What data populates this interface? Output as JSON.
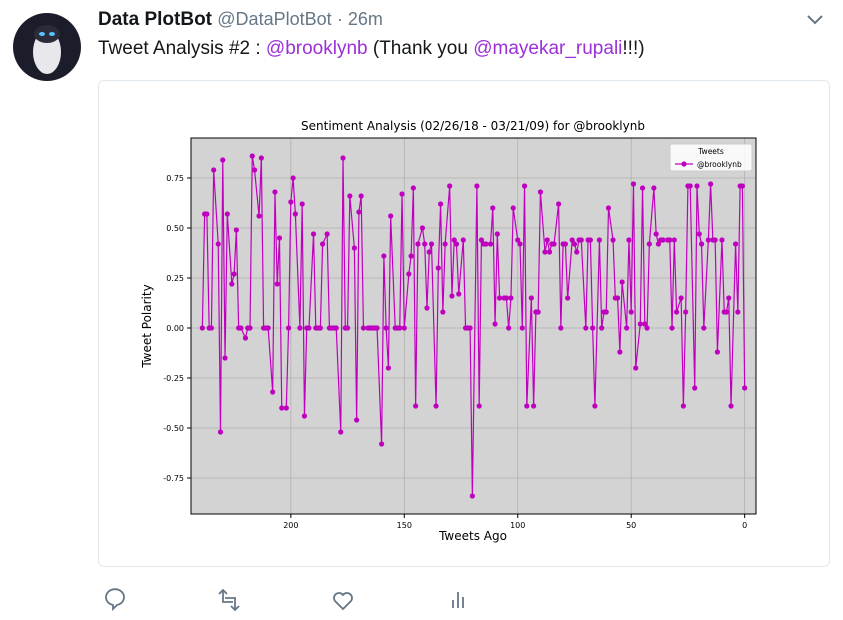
{
  "tweet": {
    "author_name": "Data PlotBot",
    "handle": "@DataPlotBot",
    "time": "· 26m",
    "text": [
      "Tweet Analysis #2 : ",
      "@brooklynb",
      " (Thank you ",
      "@mayekar_rupali",
      "!!!)"
    ]
  },
  "chart_data": {
    "type": "line",
    "title": "Sentiment Analysis (02/26/18 - 03/21/09) for @brooklynb",
    "xlabel": "Tweets Ago",
    "ylabel": "Tweet Polarity",
    "legend_title": "Tweets",
    "legend": "upper right",
    "grid": true,
    "background": "#d3d3d3",
    "xlim": [
      244,
      -5
    ],
    "ylim": [
      -0.93,
      0.95
    ],
    "xticks": [
      200,
      150,
      100,
      50,
      0
    ],
    "yticks": [
      0.75,
      {
        "value": 0.5,
        "label": "0.50"
      },
      0.25,
      {
        "value": 0,
        "label": "0.00"
      },
      -0.25,
      {
        "value": -0.5,
        "label": "-0.50"
      },
      -0.75
    ],
    "x": [
      239,
      238,
      237,
      236,
      235,
      234,
      232,
      231,
      230,
      229,
      228,
      226,
      225,
      224,
      223,
      222,
      220,
      219,
      218,
      217,
      216,
      214,
      213,
      212,
      211,
      210,
      208,
      207,
      206,
      205,
      204,
      202,
      201,
      200,
      199,
      198,
      196,
      195,
      194,
      193,
      192,
      190,
      189,
      188,
      187,
      186,
      184,
      183,
      182,
      181,
      180,
      178,
      177,
      176,
      175,
      174,
      172,
      171,
      170,
      169,
      168,
      166,
      165,
      164,
      163,
      162,
      160,
      159,
      158,
      157,
      156,
      154,
      153,
      152,
      151,
      150,
      148,
      147,
      146,
      145,
      144,
      142,
      141,
      140,
      139,
      138,
      136,
      135,
      134,
      133,
      132,
      130,
      129,
      128,
      127,
      126,
      124,
      123,
      122,
      121,
      120,
      118,
      117,
      116,
      115,
      114,
      112,
      111,
      110,
      109,
      108,
      106,
      105,
      104,
      103,
      102,
      100,
      99,
      98,
      97,
      96,
      94,
      93,
      92,
      91,
      90,
      88,
      87,
      86,
      85,
      84,
      82,
      81,
      80,
      79,
      78,
      76,
      75,
      74,
      73,
      72,
      70,
      69,
      68,
      67,
      66,
      64,
      63,
      62,
      61,
      60,
      58,
      57,
      56,
      55,
      54,
      52,
      51,
      50,
      49,
      48,
      46,
      45,
      44,
      43,
      42,
      40,
      39,
      38,
      37,
      36,
      34,
      33,
      32,
      31,
      30,
      28,
      27,
      26,
      25,
      24,
      22,
      21,
      20,
      19,
      18,
      16,
      15,
      14,
      13,
      12,
      10,
      9,
      8,
      7,
      6,
      4,
      3,
      2,
      1,
      0
    ],
    "series": [
      {
        "name": "@brooklynb",
        "color": "#bf00bf",
        "values": [
          0,
          0.57,
          0.57,
          0,
          0,
          0.79,
          0.42,
          -0.52,
          0.84,
          -0.15,
          0.57,
          0.22,
          0.27,
          0.49,
          0,
          0,
          -0.05,
          0,
          0,
          0.86,
          0.79,
          0.56,
          0.85,
          0,
          0,
          0,
          -0.32,
          0.68,
          0.22,
          0.45,
          -0.4,
          -0.4,
          0,
          0.63,
          0.75,
          0.57,
          0,
          0.62,
          -0.44,
          0,
          0,
          0.47,
          0,
          0,
          0,
          0.42,
          0.47,
          0,
          0,
          0,
          0,
          -0.52,
          0.85,
          0,
          0,
          0.66,
          0.4,
          -0.46,
          0.58,
          0.66,
          0,
          0,
          0,
          0,
          0,
          0,
          -0.58,
          0.36,
          0,
          -0.2,
          0.56,
          0,
          0,
          0,
          0.67,
          0,
          0.27,
          0.36,
          0.7,
          -0.39,
          0.42,
          0.5,
          0.42,
          0.1,
          0.38,
          0.42,
          -0.39,
          0.3,
          0.62,
          0.08,
          0.42,
          0.71,
          0.16,
          0.44,
          0.42,
          0.17,
          0.44,
          0,
          0,
          0,
          -0.84,
          0.71,
          -0.39,
          0.44,
          0.42,
          0.42,
          0.42,
          0.6,
          0.02,
          0.47,
          0.15,
          0.15,
          0.15,
          0,
          0.15,
          0.6,
          0.44,
          0.42,
          0,
          0.71,
          -0.39,
          0.15,
          -0.39,
          0.08,
          0.08,
          0.68,
          0.38,
          0.44,
          0.38,
          0.42,
          0.42,
          0.62,
          0,
          0.42,
          0.42,
          0.15,
          0.44,
          0.42,
          0.38,
          0.44,
          0.44,
          0,
          0.44,
          0.44,
          0,
          -0.39,
          0.44,
          0,
          0.08,
          0.08,
          0.6,
          0.44,
          0.15,
          0.15,
          -0.12,
          0.23,
          0,
          0.44,
          0.08,
          0.72,
          -0.2,
          0.02,
          0.7,
          0.02,
          0,
          0.42,
          0.7,
          0.47,
          0.42,
          0.44,
          0.44,
          0.44,
          0.44,
          0,
          0.44,
          0.08,
          0.15,
          -0.39,
          0.08,
          0.71,
          0.71,
          -0.3,
          0.71,
          0.47,
          0.42,
          0,
          0.44,
          0.72,
          0.44,
          0.44,
          -0.12,
          0.44,
          0.08,
          0.08,
          0.15,
          -0.39,
          0.42,
          0.08,
          0.71,
          0.71,
          -0.3
        ]
      }
    ]
  }
}
